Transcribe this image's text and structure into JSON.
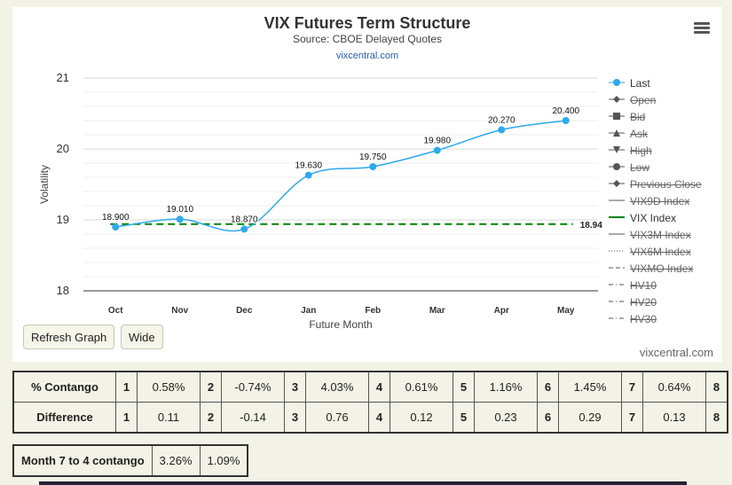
{
  "header": {
    "title": "VIX Futures Term Structure",
    "subtitle": "Source: CBOE Delayed Quotes",
    "site": "vixcentral.com"
  },
  "footer_site": "vixcentral.com",
  "buttons": {
    "refresh": "Refresh Graph",
    "wide": "Wide"
  },
  "chart_data": {
    "type": "line",
    "categories": [
      "Oct",
      "Nov",
      "Dec",
      "Jan",
      "Feb",
      "Mar",
      "Apr",
      "May"
    ],
    "series": [
      {
        "name": "Last",
        "values": [
          18.9,
          19.01,
          18.87,
          19.63,
          19.75,
          19.98,
          20.27,
          20.4
        ],
        "labels": [
          "18.900",
          "19.010",
          "18.870",
          "19.630",
          "19.750",
          "19.980",
          "20.270",
          "20.400"
        ],
        "color": "#2fa9ec"
      },
      {
        "name": "VIX Index",
        "value": 18.94,
        "label": "18.94",
        "color": "#008000",
        "style": "dashed"
      }
    ],
    "xlabel": "Future Month",
    "ylabel": "Volatility",
    "ylim": [
      18,
      21
    ],
    "yticks": [
      "18",
      "19",
      "20",
      "21"
    ],
    "grid": true,
    "legend_position": "right"
  },
  "legend": [
    {
      "label": "Last",
      "active": true,
      "icon": "circle-line-icon"
    },
    {
      "label": "Open",
      "active": false,
      "icon": "diamond-line-icon"
    },
    {
      "label": "Bid",
      "active": false,
      "icon": "square-line-icon"
    },
    {
      "label": "Ask",
      "active": false,
      "icon": "triangle-line-icon"
    },
    {
      "label": "High",
      "active": false,
      "icon": "triangle-down-line-icon"
    },
    {
      "label": "Low",
      "active": false,
      "icon": "circle-line-icon"
    },
    {
      "label": "Previous Close",
      "active": false,
      "icon": "diamond-line-icon"
    },
    {
      "label": "VIX9D Index",
      "active": false,
      "icon": "solid-line-icon"
    },
    {
      "label": "VIX Index",
      "active": true,
      "icon": "solid-line-icon"
    },
    {
      "label": "VIX3M Index",
      "active": false,
      "icon": "solid-line-icon"
    },
    {
      "label": "VIX6M Index",
      "active": false,
      "icon": "dotted-line-icon"
    },
    {
      "label": "VIXMO Index",
      "active": false,
      "icon": "dashed-line-icon"
    },
    {
      "label": "HV10",
      "active": false,
      "icon": "dash-dot-line-icon"
    },
    {
      "label": "HV20",
      "active": false,
      "icon": "dash-dot-line-icon"
    },
    {
      "label": "HV30",
      "active": false,
      "icon": "dash-dot-line-icon"
    }
  ],
  "stats_table": {
    "rows": [
      {
        "header": "% Contango",
        "cells": [
          [
            "1",
            "0.58%"
          ],
          [
            "2",
            "-0.74%"
          ],
          [
            "3",
            "4.03%"
          ],
          [
            "4",
            "0.61%"
          ],
          [
            "5",
            "1.16%"
          ],
          [
            "6",
            "1.45%"
          ],
          [
            "7",
            "0.64%"
          ],
          [
            "8",
            ""
          ]
        ]
      },
      {
        "header": "Difference",
        "cells": [
          [
            "1",
            "0.11"
          ],
          [
            "2",
            "-0.14"
          ],
          [
            "3",
            "0.76"
          ],
          [
            "4",
            "0.12"
          ],
          [
            "5",
            "0.23"
          ],
          [
            "6",
            "0.29"
          ],
          [
            "7",
            "0.13"
          ],
          [
            "8",
            ""
          ]
        ]
      }
    ]
  },
  "contango_table": {
    "label": "Month 7 to 4 contango",
    "value1": "3.26%",
    "value2": "1.09%"
  }
}
